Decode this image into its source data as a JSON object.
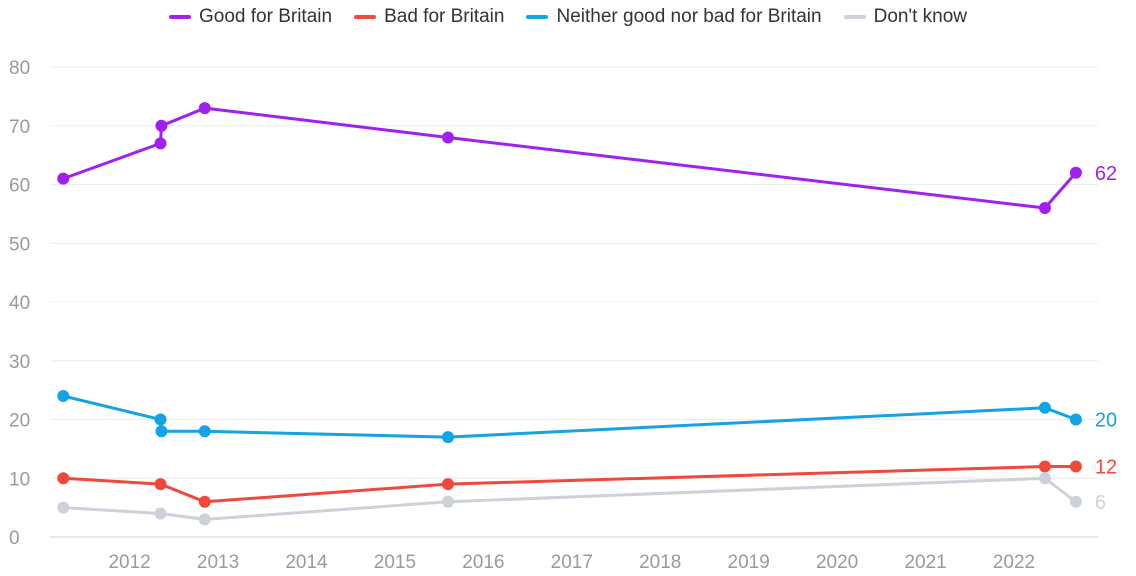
{
  "chart_data": {
    "type": "line",
    "title": "",
    "xlabel": "",
    "ylabel": "",
    "ylim": [
      0,
      80
    ],
    "yticks": [
      0,
      10,
      20,
      30,
      40,
      50,
      60,
      70,
      80
    ],
    "xlim": [
      2011.1,
      2022.95
    ],
    "xticks": [
      "2012",
      "2013",
      "2014",
      "2015",
      "2016",
      "2017",
      "2018",
      "2019",
      "2020",
      "2021",
      "2022"
    ],
    "grid": true,
    "legend_position": "top",
    "series": [
      {
        "name": "Good for Britain",
        "color": "#a020f0",
        "points": [
          {
            "x": 2011.25,
            "y": 61
          },
          {
            "x": 2012.35,
            "y": 67
          },
          {
            "x": 2012.36,
            "y": 70
          },
          {
            "x": 2012.85,
            "y": 73
          },
          {
            "x": 2015.6,
            "y": 68
          },
          {
            "x": 2022.35,
            "y": 56
          },
          {
            "x": 2022.7,
            "y": 62
          }
        ],
        "end_label": "62"
      },
      {
        "name": "Bad for Britain",
        "color": "#f2483c",
        "points": [
          {
            "x": 2011.25,
            "y": 10
          },
          {
            "x": 2012.35,
            "y": 9
          },
          {
            "x": 2012.85,
            "y": 6
          },
          {
            "x": 2015.6,
            "y": 9
          },
          {
            "x": 2022.35,
            "y": 12
          },
          {
            "x": 2022.7,
            "y": 12
          }
        ],
        "end_label": "12"
      },
      {
        "name": "Neither good nor bad for Britain",
        "color": "#14a3e3",
        "points": [
          {
            "x": 2011.25,
            "y": 24
          },
          {
            "x": 2012.35,
            "y": 20
          },
          {
            "x": 2012.36,
            "y": 18
          },
          {
            "x": 2012.85,
            "y": 18
          },
          {
            "x": 2015.6,
            "y": 17
          },
          {
            "x": 2022.35,
            "y": 22
          },
          {
            "x": 2022.7,
            "y": 20
          }
        ],
        "end_label": "20"
      },
      {
        "name": "Don't know",
        "color": "#cdd1d9",
        "points": [
          {
            "x": 2011.25,
            "y": 5
          },
          {
            "x": 2012.35,
            "y": 4
          },
          {
            "x": 2012.85,
            "y": 3
          },
          {
            "x": 2015.6,
            "y": 6
          },
          {
            "x": 2022.35,
            "y": 10
          },
          {
            "x": 2022.7,
            "y": 6
          }
        ],
        "end_label": "6"
      }
    ]
  }
}
